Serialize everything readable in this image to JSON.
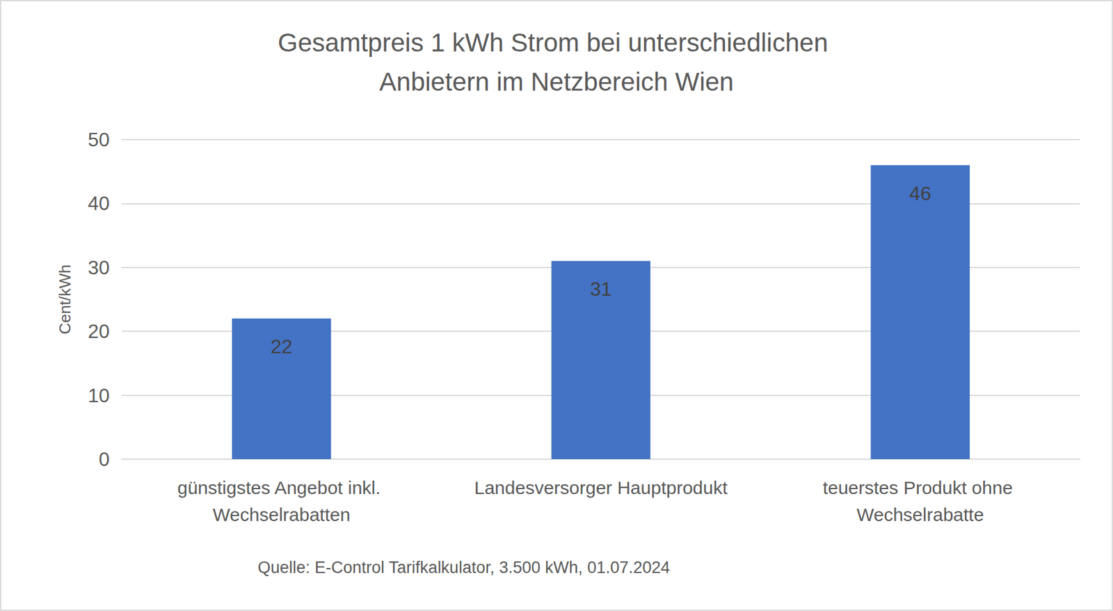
{
  "chart_data": {
    "type": "bar",
    "title": "Gesamtpreis 1 kWh Strom bei unterschiedlichen Anbietern im Netzbereich Wien",
    "y_label": "Cent/kWh",
    "source": "Quelle: E-Control Tarifkalkulator, 3.500 kWh, 01.07.2024",
    "categories": [
      "günstigstes Angebot inkl. Wechselrabatten",
      "Landesversorger Hauptprodukt",
      "teuerstes Produkt ohne Wechselrabatte"
    ],
    "values": [
      22,
      31,
      46
    ],
    "color": "#4472c4",
    "ylim": [
      0,
      50
    ],
    "yticks": [
      0,
      10,
      20,
      30,
      40,
      50
    ],
    "grid": true,
    "data_labels": true
  }
}
